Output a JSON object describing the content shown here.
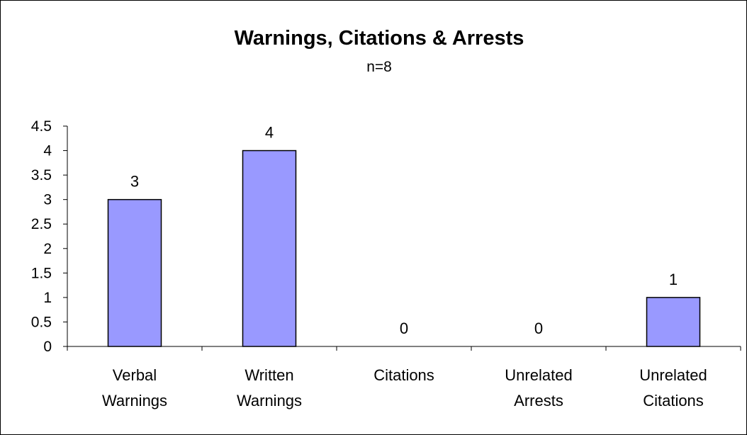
{
  "chart_data": {
    "type": "bar",
    "title": "Warnings, Citations & Arrests",
    "subtitle": "n=8",
    "categories": [
      [
        "Verbal",
        "Warnings"
      ],
      [
        "Written",
        "Warnings"
      ],
      [
        "Citations"
      ],
      [
        "Unrelated",
        "Arrests"
      ],
      [
        "Unrelated",
        "Citations"
      ]
    ],
    "values": [
      3,
      4,
      0,
      0,
      1
    ],
    "data_labels": [
      "3",
      "4",
      "0",
      "0",
      "1"
    ],
    "ylim": [
      0,
      4.5
    ],
    "yticks": [
      "0",
      "0.5",
      "1",
      "1.5",
      "2",
      "2.5",
      "3",
      "3.5",
      "4",
      "4.5"
    ],
    "bar_color": "#9999ff",
    "grid": false,
    "legend": "none"
  }
}
